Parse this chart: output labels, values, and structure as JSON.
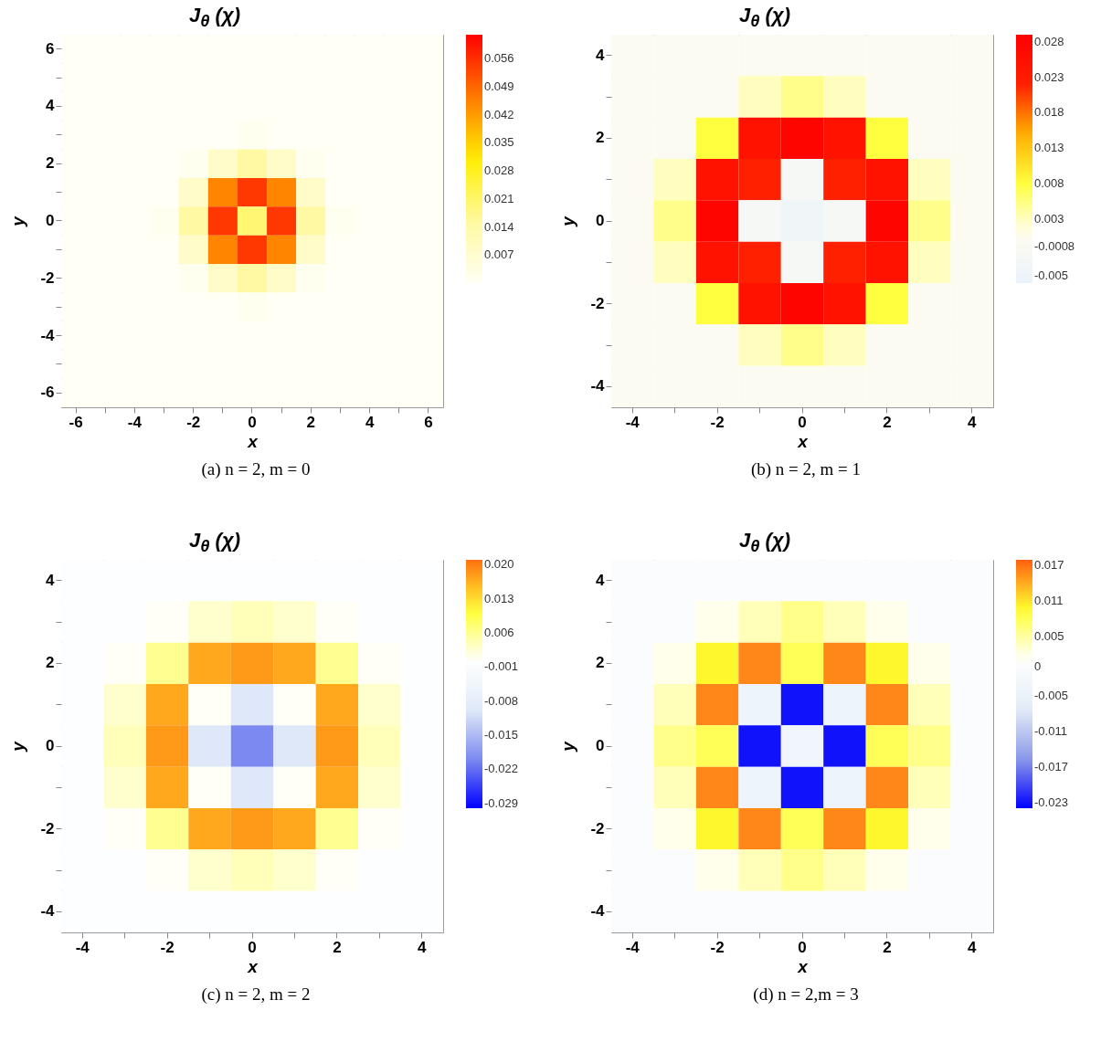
{
  "chart_data": [
    {
      "type": "heatmap",
      "title": "J$_{θ}$ (χ)",
      "xlabel": "x",
      "ylabel": "y",
      "categories": [
        "-6",
        null,
        "-4",
        null,
        "-2",
        null,
        "0",
        null,
        "2",
        null,
        "4",
        null,
        "6"
      ],
      "y_categories": [
        "6",
        null,
        "4",
        null,
        "2",
        null,
        "0",
        null,
        "-2",
        null,
        "-4",
        null,
        "-6"
      ],
      "cells": [
        [
          0,
          0,
          0,
          0,
          0,
          0,
          0,
          0,
          0,
          0,
          0,
          0,
          0
        ],
        [
          0,
          0,
          0,
          0,
          0,
          0,
          0,
          0,
          0,
          0,
          0,
          0,
          0
        ],
        [
          0,
          0,
          0,
          0,
          0,
          0,
          0,
          0,
          0,
          0,
          0,
          0,
          0
        ],
        [
          0,
          0,
          0,
          0,
          0,
          0,
          0.001,
          0,
          0,
          0,
          0,
          0,
          0
        ],
        [
          0,
          0,
          0,
          0,
          0.001,
          0.008,
          0.015,
          0.008,
          0.001,
          0,
          0,
          0,
          0
        ],
        [
          0,
          0,
          0,
          0,
          0.008,
          0.045,
          0.055,
          0.045,
          0.008,
          0,
          0,
          0,
          0
        ],
        [
          0,
          0,
          0,
          0.001,
          0.015,
          0.055,
          0.02,
          0.055,
          0.015,
          0.001,
          0,
          0,
          0
        ],
        [
          0,
          0,
          0,
          0,
          0.008,
          0.045,
          0.055,
          0.045,
          0.008,
          0,
          0,
          0,
          0
        ],
        [
          0,
          0,
          0,
          0,
          0.001,
          0.008,
          0.015,
          0.008,
          0.001,
          0,
          0,
          0,
          0
        ],
        [
          0,
          0,
          0,
          0,
          0,
          0,
          0.001,
          0,
          0,
          0,
          0,
          0,
          0
        ],
        [
          0,
          0,
          0,
          0,
          0,
          0,
          0,
          0,
          0,
          0,
          0,
          0,
          0
        ],
        [
          0,
          0,
          0,
          0,
          0,
          0,
          0,
          0,
          0,
          0,
          0,
          0,
          0
        ],
        [
          0,
          0,
          0,
          0,
          0,
          0,
          0,
          0,
          0,
          0,
          0,
          0,
          0
        ]
      ],
      "clim": [
        0,
        0.062
      ],
      "cticks": [
        0.007,
        0.014,
        0.021,
        0.028,
        0.035,
        0.042,
        0.049,
        0.056
      ],
      "colors": [
        "#fffff5",
        "#fff9a0",
        "#ffee00",
        "#ff7a00",
        "#ff0000"
      ],
      "annotations": [
        "(a) n = 2, m = 0"
      ]
    },
    {
      "type": "heatmap",
      "title": "J$_{θ}$ (χ)",
      "xlabel": "x",
      "ylabel": "y",
      "categories": [
        "-4",
        null,
        "-2",
        null,
        "0",
        null,
        "2",
        null,
        "4"
      ],
      "y_categories": [
        "4",
        null,
        "2",
        null,
        "0",
        null,
        "-2",
        null,
        "-4"
      ],
      "cells": [
        [
          0,
          0,
          0,
          0,
          0,
          0,
          0,
          0,
          0
        ],
        [
          0,
          0,
          0,
          0.003,
          0.005,
          0.003,
          0,
          0,
          0
        ],
        [
          0,
          0,
          0.008,
          0.025,
          0.028,
          0.025,
          0.008,
          0,
          0
        ],
        [
          0,
          0.003,
          0.025,
          0.022,
          -0.002,
          0.022,
          0.025,
          0.003,
          0
        ],
        [
          0,
          0.005,
          0.028,
          -0.002,
          -0.004,
          -0.002,
          0.028,
          0.005,
          0
        ],
        [
          0,
          0.003,
          0.025,
          0.022,
          -0.002,
          0.022,
          0.025,
          0.003,
          0
        ],
        [
          0,
          0,
          0.008,
          0.025,
          0.028,
          0.025,
          0.008,
          0,
          0
        ],
        [
          0,
          0,
          0,
          0.003,
          0.005,
          0.003,
          0,
          0,
          0
        ],
        [
          0,
          0,
          0,
          0,
          0,
          0,
          0,
          0,
          0
        ]
      ],
      "clim": [
        -0.006,
        0.029
      ],
      "cticks": [
        -0.005,
        -0.0008,
        0.003,
        0.008,
        0.013,
        0.018,
        0.023,
        0.028
      ],
      "colors": [
        "#eaf2fb",
        "#fffdf0",
        "#ffff40",
        "#ffb000",
        "#ff2000",
        "#ff0000"
      ],
      "annotations": [
        "(b) n = 2, m = 1"
      ]
    },
    {
      "type": "heatmap",
      "title": "J$_{θ}$ (χ)",
      "xlabel": "x",
      "ylabel": "y",
      "categories": [
        "-4",
        null,
        "-2",
        null,
        "0",
        null,
        "2",
        null,
        "4"
      ],
      "y_categories": [
        "4",
        null,
        "2",
        null,
        "0",
        null,
        "-2",
        null,
        "-4"
      ],
      "cells": [
        [
          0,
          0,
          0,
          0,
          0,
          0,
          0,
          0,
          0
        ],
        [
          0,
          0,
          0.001,
          0.003,
          0.004,
          0.003,
          0.001,
          0,
          0
        ],
        [
          0,
          0.001,
          0.006,
          0.017,
          0.018,
          0.017,
          0.006,
          0.001,
          0
        ],
        [
          0,
          0.003,
          0.017,
          0.001,
          -0.01,
          0.001,
          0.017,
          0.003,
          0
        ],
        [
          0,
          0.004,
          0.018,
          -0.01,
          -0.02,
          -0.01,
          0.018,
          0.004,
          0
        ],
        [
          0,
          0.003,
          0.017,
          0.001,
          -0.01,
          0.001,
          0.017,
          0.003,
          0
        ],
        [
          0,
          0.001,
          0.006,
          0.017,
          0.018,
          0.017,
          0.006,
          0.001,
          0
        ],
        [
          0,
          0,
          0.001,
          0.003,
          0.004,
          0.003,
          0.001,
          0,
          0
        ],
        [
          0,
          0,
          0,
          0,
          0,
          0,
          0,
          0,
          0
        ]
      ],
      "clim": [
        -0.03,
        0.021
      ],
      "cticks": [
        -0.029,
        -0.022,
        -0.015,
        -0.008,
        -0.001,
        0.006,
        0.013,
        {
          "value": 0.02,
          "label": "0.020"
        }
      ],
      "colors": [
        "#0000ff",
        "#7d8cf0",
        "#e2ecf8",
        "#ffffff",
        "#ffff30",
        "#ff7010"
      ],
      "annotations": [
        "(c) n = 2, m = 2"
      ]
    },
    {
      "type": "heatmap",
      "title": "J$_{θ}$ (χ)",
      "xlabel": "x",
      "ylabel": "y",
      "categories": [
        "-4",
        null,
        "-2",
        null,
        "0",
        null,
        "2",
        null,
        "4"
      ],
      "y_categories": [
        "4",
        null,
        "2",
        null,
        "0",
        null,
        "-2",
        null,
        "-4"
      ],
      "cells": [
        [
          0,
          0,
          0,
          0,
          0,
          0,
          0,
          0,
          0
        ],
        [
          0,
          0,
          0.002,
          0.004,
          0.006,
          0.004,
          0.002,
          0,
          0
        ],
        [
          0,
          0.002,
          0.01,
          0.016,
          0.008,
          0.016,
          0.01,
          0.002,
          0
        ],
        [
          0,
          0.004,
          0.016,
          -0.004,
          -0.023,
          -0.004,
          0.016,
          0.004,
          0
        ],
        [
          0,
          0.006,
          0.008,
          -0.023,
          -0.003,
          -0.023,
          0.008,
          0.006,
          0
        ],
        [
          0,
          0.004,
          0.016,
          -0.004,
          -0.023,
          -0.004,
          0.016,
          0.004,
          0
        ],
        [
          0,
          0.002,
          0.01,
          0.016,
          0.008,
          0.016,
          0.01,
          0.002,
          0
        ],
        [
          0,
          0,
          0.002,
          0.004,
          0.006,
          0.004,
          0.002,
          0,
          0
        ],
        [
          0,
          0,
          0,
          0,
          0,
          0,
          0,
          0,
          0
        ]
      ],
      "clim": [
        -0.024,
        0.018
      ],
      "cticks": [
        -0.023,
        -0.017,
        -0.011,
        -0.005,
        0,
        0.005,
        0.011,
        0.017
      ],
      "colors": [
        "#0000ff",
        "#8d9ae8",
        "#e3edf8",
        "#ffffff",
        "#ffff30",
        "#ff6010"
      ],
      "annotations": [
        "(d) n = 2,m = 3"
      ]
    }
  ]
}
